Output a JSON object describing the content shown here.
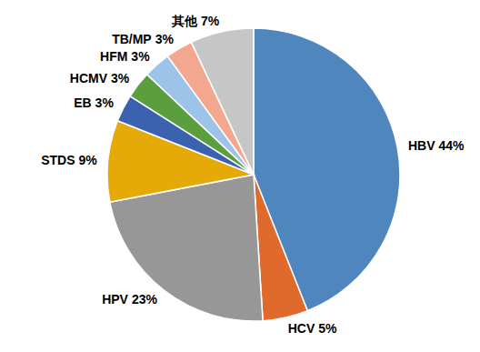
{
  "chart_data": {
    "type": "pie",
    "categories": [
      "HBV",
      "HCV",
      "HPV",
      "STDS",
      "EB",
      "HCMV",
      "HFM",
      "TB/MP",
      "其他"
    ],
    "values": [
      44,
      5,
      23,
      9,
      3,
      3,
      3,
      3,
      7
    ],
    "value_labels": [
      "44%",
      "5%",
      "23%",
      "9%",
      "3%",
      "3%",
      "3%",
      "3%",
      "7%"
    ],
    "colors": [
      "#4F86BE",
      "#DF6A2B",
      "#979797",
      "#E5AA07",
      "#3A62AE",
      "#5B9E3E",
      "#9EC3E8",
      "#F3A78E",
      "#C6C6C6"
    ],
    "data_labels": true
  }
}
